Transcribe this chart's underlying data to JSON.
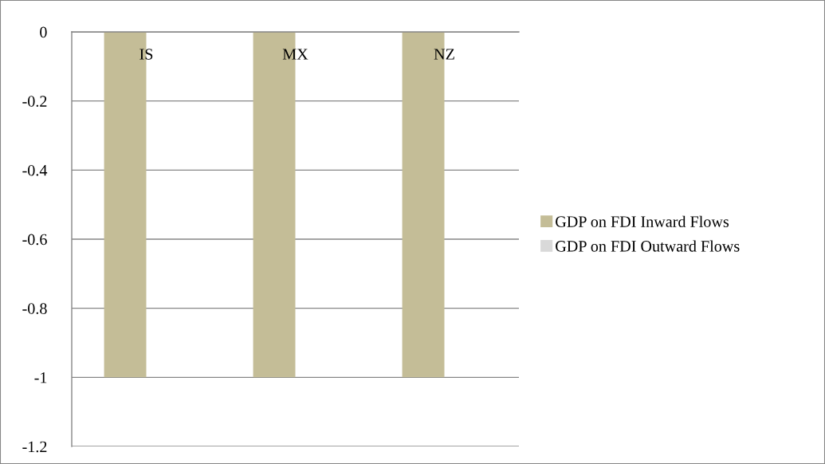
{
  "chart_data": {
    "type": "bar",
    "categories": [
      "IS",
      "MX",
      "NZ"
    ],
    "series": [
      {
        "name": "GDP on FDI Inward Flows",
        "color": "#c4bd97",
        "values": [
          -1,
          -1,
          -1
        ]
      },
      {
        "name": "GDP on FDI Outward Flows",
        "color": "#d9d9d9",
        "values": [
          0,
          0,
          0
        ]
      }
    ],
    "ylim": [
      -1.2,
      0
    ],
    "yticks": [
      0,
      -0.2,
      -0.4,
      -0.6,
      -0.8,
      -1,
      -1.2
    ],
    "grid": "y",
    "legend": "right"
  }
}
